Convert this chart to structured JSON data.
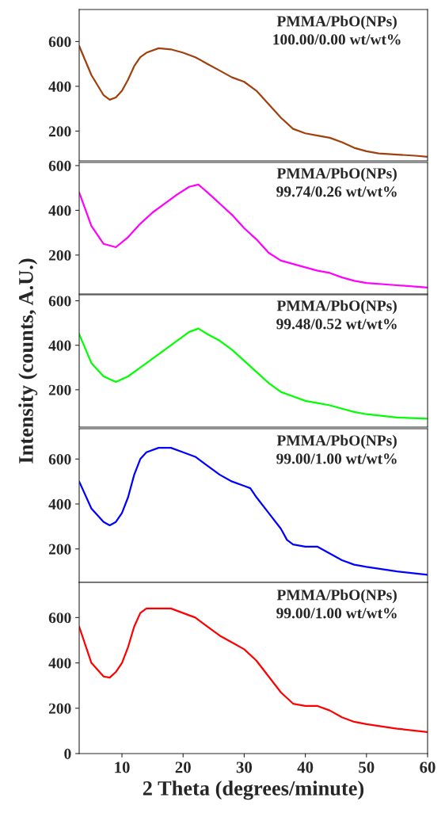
{
  "chart_data": [
    {
      "type": "line",
      "xlim": [
        3,
        60
      ],
      "ylim": [
        67,
        743
      ],
      "yticks": [
        200,
        400,
        600
      ],
      "tick_labels": "y",
      "annotations": [
        "PMMA/PbO(NPs)\n100.00/0.00 wt/wt%"
      ],
      "series": [
        {
          "color": "#a0410d",
          "x": [
            3,
            5,
            7,
            8,
            9,
            10,
            11,
            12,
            13,
            14,
            16,
            18,
            20,
            22,
            24,
            26,
            28,
            30,
            32,
            34,
            36,
            38,
            40,
            42,
            44,
            46,
            48,
            50,
            52,
            55,
            58,
            60
          ],
          "values": [
            580,
            450,
            360,
            340,
            350,
            380,
            430,
            490,
            530,
            550,
            570,
            565,
            550,
            530,
            500,
            470,
            440,
            420,
            380,
            320,
            260,
            210,
            190,
            180,
            170,
            150,
            125,
            110,
            100,
            95,
            90,
            85
          ]
        }
      ]
    },
    {
      "type": "line",
      "xlim": [
        3,
        60
      ],
      "ylim": [
        26,
        614
      ],
      "yticks": [
        200,
        400,
        600
      ],
      "tick_labels": "y",
      "annotations": [
        "PMMA/PbO(NPs)\n99.74/0.26 wt/wt%"
      ],
      "series": [
        {
          "color": "#ff00ff",
          "x": [
            3,
            5,
            7,
            9,
            11,
            13,
            15,
            17,
            19,
            21,
            22.5,
            24,
            26,
            28,
            30,
            32,
            34,
            36,
            38,
            40,
            42,
            44,
            46,
            48,
            50,
            55,
            60
          ],
          "values": [
            480,
            330,
            250,
            235,
            280,
            340,
            390,
            430,
            470,
            505,
            515,
            480,
            430,
            380,
            320,
            270,
            210,
            175,
            160,
            145,
            130,
            120,
            100,
            85,
            75,
            65,
            55
          ]
        }
      ]
    },
    {
      "type": "line",
      "xlim": [
        3,
        60
      ],
      "ylim": [
        32,
        627
      ],
      "yticks": [
        200,
        400,
        600
      ],
      "tick_labels": "y",
      "ylabel": "Intensity (counts, A.U.)",
      "annotations": [
        "PMMA/PbO(NPs)\n99.48/0.52 wt/wt%"
      ],
      "series": [
        {
          "color": "#00ff00",
          "x": [
            3,
            5,
            7,
            9,
            11,
            13,
            15,
            17,
            19,
            21,
            22.5,
            24,
            26,
            28,
            30,
            32,
            34,
            36,
            38,
            40,
            42,
            44,
            46,
            48,
            50,
            55,
            60
          ],
          "values": [
            450,
            320,
            260,
            235,
            260,
            300,
            340,
            380,
            420,
            460,
            475,
            450,
            420,
            380,
            330,
            280,
            230,
            190,
            170,
            150,
            140,
            130,
            115,
            100,
            90,
            75,
            70
          ]
        }
      ]
    },
    {
      "type": "line",
      "xlim": [
        3,
        60
      ],
      "ylim": [
        51,
        735
      ],
      "yticks": [
        200,
        400,
        600
      ],
      "tick_labels": "y",
      "annotations": [
        "PMMA/PbO(NPs)\n99.00/1.00 wt/wt%"
      ],
      "series": [
        {
          "color": "#0000ff",
          "x": [
            3,
            5,
            7,
            8,
            9,
            10,
            11,
            12,
            13,
            14,
            16,
            18,
            20,
            22,
            24,
            26,
            28,
            30,
            31,
            32,
            34,
            36,
            37,
            38,
            40,
            42,
            44,
            46,
            48,
            50,
            55,
            60
          ],
          "values": [
            500,
            380,
            320,
            305,
            320,
            360,
            430,
            530,
            600,
            630,
            650,
            650,
            630,
            610,
            570,
            530,
            500,
            480,
            470,
            430,
            360,
            290,
            240,
            220,
            210,
            210,
            180,
            150,
            130,
            120,
            100,
            85
          ]
        }
      ]
    },
    {
      "type": "line",
      "xlim": [
        3,
        60
      ],
      "ylim": [
        0,
        755
      ],
      "xticks": [
        10,
        20,
        30,
        40,
        50,
        60
      ],
      "yticks": [
        0,
        200,
        400,
        600
      ],
      "xlabel": "2 Theta (degrees/minute)",
      "annotations": [
        "PMMA/PbO(NPs)\n99.00/1.00 wt/wt%"
      ],
      "series": [
        {
          "color": "#ff0000",
          "x": [
            3,
            5,
            7,
            8,
            9,
            10,
            11,
            12,
            13,
            14,
            16,
            18,
            20,
            22,
            24,
            26,
            28,
            30,
            32,
            34,
            36,
            38,
            40,
            42,
            44,
            46,
            48,
            50,
            55,
            60
          ],
          "values": [
            560,
            400,
            340,
            335,
            360,
            400,
            470,
            560,
            620,
            640,
            640,
            640,
            620,
            600,
            560,
            520,
            490,
            460,
            410,
            340,
            270,
            220,
            210,
            210,
            190,
            160,
            140,
            130,
            110,
            95
          ]
        }
      ]
    }
  ]
}
